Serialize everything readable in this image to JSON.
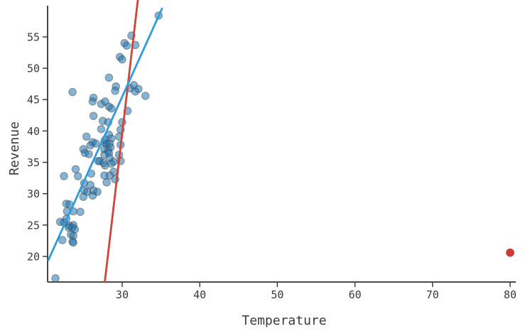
{
  "chart_data": {
    "type": "scatter",
    "title": "",
    "xlabel": "Temperature",
    "ylabel": "Revenue",
    "xlim": [
      20.39,
      80.73
    ],
    "ylim": [
      15.92,
      60.88
    ],
    "x_ticks": [
      30,
      40,
      50,
      60,
      70,
      80
    ],
    "y_ticks": [
      20,
      25,
      30,
      35,
      40,
      45,
      50,
      55
    ],
    "grid": false,
    "legend_position": "none",
    "colors": {
      "point_fill": "#1f77b4",
      "point_edge": "#4a4a4a",
      "blue_line": "#2f9ddb",
      "red_line": "#d0443a",
      "outlier": "#c93d35",
      "axis": "#333333",
      "label_text": "#3a3a3a"
    },
    "series": [
      {
        "name": "observations",
        "type": "points",
        "color": "#1f77b4",
        "points": [
          [
            34.7,
            58.4
          ],
          [
            31.2,
            55.2
          ],
          [
            30.3,
            54.0
          ],
          [
            30.6,
            53.6
          ],
          [
            31.7,
            53.7
          ],
          [
            29.7,
            51.8
          ],
          [
            30.0,
            51.4
          ],
          [
            28.3,
            48.5
          ],
          [
            23.6,
            46.2
          ],
          [
            29.2,
            47.1
          ],
          [
            29.1,
            46.4
          ],
          [
            31.0,
            46.8
          ],
          [
            31.5,
            47.3
          ],
          [
            31.7,
            46.3
          ],
          [
            32.1,
            46.7
          ],
          [
            33.0,
            45.6
          ],
          [
            26.3,
            45.3
          ],
          [
            27.3,
            44.3
          ],
          [
            26.2,
            44.7
          ],
          [
            27.8,
            44.7
          ],
          [
            28.3,
            43.9
          ],
          [
            28.6,
            43.6
          ],
          [
            30.7,
            43.2
          ],
          [
            26.3,
            42.4
          ],
          [
            27.5,
            41.6
          ],
          [
            28.2,
            41.4
          ],
          [
            30.0,
            41.4
          ],
          [
            29.8,
            40.2
          ],
          [
            27.3,
            40.3
          ],
          [
            29.6,
            39.1
          ],
          [
            28.3,
            39.4
          ],
          [
            25.4,
            39.1
          ],
          [
            28.6,
            38.8
          ],
          [
            27.7,
            38.2
          ],
          [
            26.2,
            38.2
          ],
          [
            25.9,
            37.7
          ],
          [
            26.6,
            38.0
          ],
          [
            27.8,
            38.6
          ],
          [
            28.0,
            37.9
          ],
          [
            28.4,
            38.0
          ],
          [
            29.8,
            37.8
          ],
          [
            25.0,
            37.1
          ],
          [
            27.7,
            37.1
          ],
          [
            28.2,
            36.9
          ],
          [
            28.5,
            37.4
          ],
          [
            25.2,
            36.5
          ],
          [
            25.7,
            36.3
          ],
          [
            27.7,
            36.2
          ],
          [
            28.3,
            36.5
          ],
          [
            29.6,
            36.2
          ],
          [
            28.4,
            35.7
          ],
          [
            27.1,
            35.2
          ],
          [
            29.8,
            35.2
          ],
          [
            28.9,
            35.1
          ],
          [
            27.8,
            34.5
          ],
          [
            26.9,
            35.2
          ],
          [
            27.6,
            34.9
          ],
          [
            28.6,
            34.8
          ],
          [
            24.0,
            33.9
          ],
          [
            22.5,
            32.8
          ],
          [
            24.3,
            32.8
          ],
          [
            26.0,
            33.2
          ],
          [
            28.4,
            32.9
          ],
          [
            27.7,
            32.9
          ],
          [
            28.9,
            33.5
          ],
          [
            25.1,
            31.7
          ],
          [
            25.9,
            31.4
          ],
          [
            28.0,
            31.8
          ],
          [
            29.1,
            32.3
          ],
          [
            25.1,
            30.5
          ],
          [
            25.5,
            30.3
          ],
          [
            26.3,
            30.5
          ],
          [
            26.8,
            30.3
          ],
          [
            25.0,
            29.5
          ],
          [
            26.2,
            29.7
          ],
          [
            22.8,
            28.4
          ],
          [
            23.2,
            28.3
          ],
          [
            22.9,
            27.2
          ],
          [
            23.7,
            27.2
          ],
          [
            24.6,
            27.1
          ],
          [
            22.0,
            25.5
          ],
          [
            22.5,
            25.4
          ],
          [
            22.8,
            26.0
          ],
          [
            23.2,
            24.9
          ],
          [
            23.7,
            25.0
          ],
          [
            23.1,
            24.6
          ],
          [
            23.6,
            24.6
          ],
          [
            23.9,
            24.3
          ],
          [
            23.4,
            23.5
          ],
          [
            23.7,
            23.3
          ],
          [
            22.3,
            22.6
          ],
          [
            23.6,
            22.4
          ],
          [
            23.7,
            22.2
          ],
          [
            21.4,
            16.5
          ]
        ]
      },
      {
        "name": "outlier-point",
        "type": "points",
        "color": "#c93d35",
        "points": [
          [
            80.0,
            20.6
          ]
        ]
      },
      {
        "name": "red-trend-line",
        "type": "line",
        "color": "#d0443a",
        "points": [
          [
            27.76,
            15.92
          ],
          [
            32.02,
            60.88
          ]
        ]
      },
      {
        "name": "blue-trend-line",
        "type": "line",
        "color": "#2f9ddb",
        "points": [
          [
            20.48,
            19.4
          ],
          [
            35.13,
            59.5
          ]
        ]
      }
    ]
  }
}
